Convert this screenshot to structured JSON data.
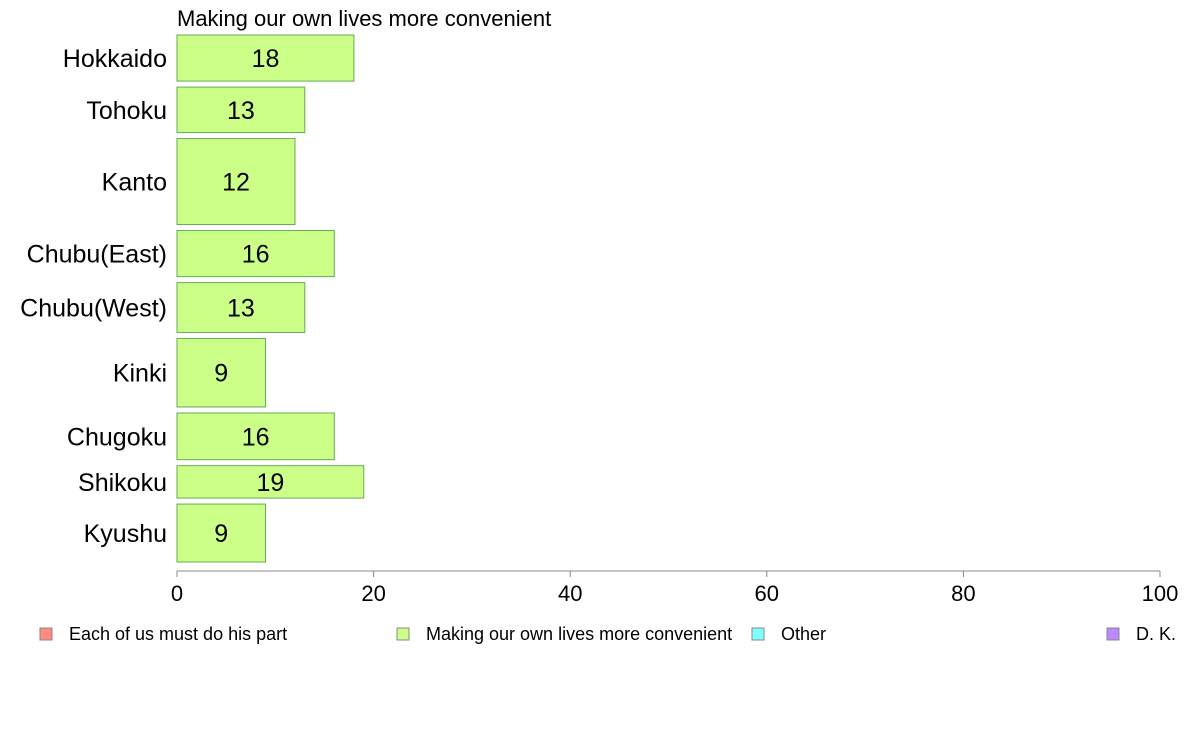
{
  "chart_data": {
    "type": "bar",
    "orientation": "horizontal",
    "title": "Making our own lives more convenient",
    "categories": [
      "Hokkaido",
      "Tohoku",
      "Kanto",
      "Chubu(East)",
      "Chubu(West)",
      "Kinki",
      "Chugoku",
      "Shikoku",
      "Kyushu"
    ],
    "category_weights": [
      0.74,
      0.73,
      1.38,
      0.74,
      0.8,
      1.1,
      0.75,
      0.52,
      0.93
    ],
    "series": [
      {
        "name": "Making our own lives more convenient",
        "values": [
          18,
          13,
          12,
          16,
          13,
          9,
          16,
          19,
          9
        ],
        "data_labels": [
          "18",
          "13",
          "12",
          "16",
          "13",
          "9",
          "16",
          "19",
          "9"
        ],
        "color": "#CCFF88"
      }
    ],
    "xlim": [
      0,
      100
    ],
    "xticks": [
      0,
      20,
      40,
      60,
      80,
      100
    ],
    "xtick_labels": [
      "0",
      "20",
      "40",
      "60",
      "80",
      "100"
    ],
    "xlabel": "",
    "ylabel": "",
    "grid": false,
    "legend_position": "bottom",
    "legend": [
      {
        "label": "Each of us must do his part",
        "color": "#FF8A80"
      },
      {
        "label": "Making our own lives more convenient",
        "color": "#CCFF88"
      },
      {
        "label": "Other",
        "color": "#80FFFF"
      },
      {
        "label": "D. K.",
        "color": "#BB88FF"
      }
    ],
    "bar_border_color": "#66AA55",
    "axis_color": "#888888"
  }
}
